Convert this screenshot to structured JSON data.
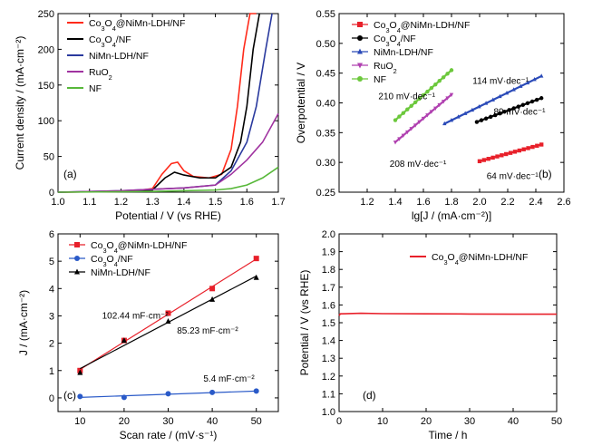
{
  "chart_data": [
    {
      "id": "a",
      "type": "line",
      "panel_label": "(a)",
      "xlabel": "Potential / V (vs RHE)",
      "ylabel": "Current density / (mA·cm⁻²)",
      "xlim": [
        1.0,
        1.7
      ],
      "ylim": [
        0,
        250
      ],
      "xticks": [
        "1.0",
        "1.1",
        "1.2",
        "1.3",
        "1.4",
        "1.5",
        "1.6",
        "1.7"
      ],
      "yticks": [
        "0",
        "50",
        "100",
        "150",
        "200",
        "250"
      ],
      "legend_position": "top-left",
      "series": [
        {
          "name": "Co3O4@NiMn-LDH/NF",
          "color": "#ff2a1a",
          "x": [
            1.0,
            1.2,
            1.25,
            1.3,
            1.33,
            1.36,
            1.38,
            1.4,
            1.43,
            1.48,
            1.52,
            1.55,
            1.57,
            1.59,
            1.61,
            1.63
          ],
          "y": [
            0,
            1,
            2,
            5,
            25,
            40,
            42,
            30,
            22,
            20,
            25,
            60,
            120,
            200,
            250,
            250
          ]
        },
        {
          "name": "Co3O4/NF",
          "color": "#000000",
          "x": [
            1.0,
            1.2,
            1.3,
            1.34,
            1.37,
            1.4,
            1.45,
            1.5,
            1.55,
            1.58,
            1.6,
            1.62,
            1.64
          ],
          "y": [
            0,
            1,
            3,
            20,
            28,
            24,
            20,
            20,
            35,
            70,
            120,
            200,
            250
          ]
        },
        {
          "name": "NiMn-LDH/NF",
          "color": "#2a3a9e",
          "x": [
            1.0,
            1.2,
            1.3,
            1.4,
            1.5,
            1.55,
            1.6,
            1.63,
            1.66,
            1.68
          ],
          "y": [
            0,
            2,
            4,
            6,
            10,
            30,
            70,
            120,
            200,
            250
          ]
        },
        {
          "name": "RuO2",
          "color": "#a033a0",
          "x": [
            1.0,
            1.2,
            1.3,
            1.4,
            1.5,
            1.55,
            1.6,
            1.65,
            1.7
          ],
          "y": [
            0,
            2,
            4,
            6,
            10,
            25,
            45,
            70,
            110
          ]
        },
        {
          "name": "NF",
          "color": "#58b83a",
          "x": [
            1.0,
            1.3,
            1.5,
            1.55,
            1.6,
            1.65,
            1.7
          ],
          "y": [
            0,
            1,
            3,
            5,
            10,
            20,
            35
          ]
        }
      ]
    },
    {
      "id": "b",
      "type": "scatter",
      "panel_label": "(b)",
      "xlabel": "lg[J / (mA·cm⁻²)]",
      "ylabel": "Overpotential / V",
      "xlim": [
        1.0,
        2.6
      ],
      "ylim": [
        0.25,
        0.55
      ],
      "xticks": [
        "1.2",
        "1.4",
        "1.6",
        "1.8",
        "2.0",
        "2.2",
        "2.4",
        "2.6"
      ],
      "yticks": [
        "0.25",
        "0.30",
        "0.35",
        "0.40",
        "0.45",
        "0.50",
        "0.55"
      ],
      "legend_position": "top-left",
      "series": [
        {
          "name": "Co3O4@NiMn-LDH/NF",
          "color": "#e8202a",
          "marker": "square",
          "x": [
            2.0,
            2.44
          ],
          "y": [
            0.302,
            0.33
          ],
          "label": "64 mV·dec⁻¹"
        },
        {
          "name": "Co3O4/NF",
          "color": "#000000",
          "marker": "circle",
          "x": [
            1.98,
            2.44
          ],
          "y": [
            0.368,
            0.408
          ],
          "label": "89 mV·dec⁻¹"
        },
        {
          "name": "NiMn-LDH/NF",
          "color": "#2a4ab8",
          "marker": "triangle-up",
          "x": [
            1.75,
            2.44
          ],
          "y": [
            0.365,
            0.445
          ],
          "label": "114 mV·dec⁻¹"
        },
        {
          "name": "RuO2",
          "color": "#b040b0",
          "marker": "triangle-down",
          "x": [
            1.4,
            1.8
          ],
          "y": [
            0.334,
            0.414
          ],
          "label": "208 mV·dec⁻¹"
        },
        {
          "name": "NF",
          "color": "#6cc83c",
          "marker": "circle",
          "x": [
            1.4,
            1.8
          ],
          "y": [
            0.371,
            0.455
          ],
          "label": "210 mV·dec⁻¹"
        }
      ]
    },
    {
      "id": "c",
      "type": "scatter",
      "panel_label": "(c)",
      "xlabel": "Scan rate / (mV·s⁻¹)",
      "ylabel": "J / (mA·cm⁻²)",
      "xlim": [
        5,
        55
      ],
      "ylim": [
        -0.5,
        6
      ],
      "xticks": [
        "10",
        "20",
        "30",
        "40",
        "50"
      ],
      "yticks": [
        "0",
        "1",
        "2",
        "3",
        "4",
        "5",
        "6"
      ],
      "legend_position": "top-left",
      "series": [
        {
          "name": "Co3O4@NiMn-LDH/NF",
          "color": "#e8202a",
          "marker": "square",
          "x": [
            10,
            20,
            30,
            40,
            50
          ],
          "y": [
            1.0,
            2.1,
            3.1,
            4.0,
            5.1
          ],
          "label": "102.44 mF·cm⁻²"
        },
        {
          "name": "Co3O4/NF",
          "color": "#2a5ac8",
          "marker": "circle",
          "x": [
            10,
            20,
            30,
            40,
            50
          ],
          "y": [
            0.05,
            0.02,
            0.15,
            0.2,
            0.25
          ],
          "label": "5.4 mF·cm⁻²"
        },
        {
          "name": "NiMn-LDH/NF",
          "color": "#000000",
          "marker": "triangle-up",
          "x": [
            10,
            20,
            30,
            40,
            50
          ],
          "y": [
            0.92,
            2.1,
            2.8,
            3.6,
            4.4
          ],
          "label": "85.23 mF·cm⁻²"
        }
      ]
    },
    {
      "id": "d",
      "type": "line",
      "panel_label": "(d)",
      "xlabel": "Time / h",
      "ylabel": "Potential / V (vs RHE)",
      "xlim": [
        0,
        50
      ],
      "ylim": [
        1.0,
        2.0
      ],
      "xticks": [
        "0",
        "10",
        "20",
        "30",
        "40",
        "50"
      ],
      "yticks": [
        "1.0",
        "1.1",
        "1.2",
        "1.3",
        "1.4",
        "1.5",
        "1.6",
        "1.7",
        "1.8",
        "1.9",
        "2.0"
      ],
      "legend_position": "top-right",
      "series": [
        {
          "name": "Co3O4@NiMn-LDH/NF",
          "color": "#e8202a",
          "x": [
            0,
            0.3,
            5,
            10,
            20,
            30,
            40,
            50
          ],
          "y": [
            1.54,
            1.55,
            1.553,
            1.551,
            1.55,
            1.549,
            1.548,
            1.548
          ]
        }
      ]
    }
  ]
}
